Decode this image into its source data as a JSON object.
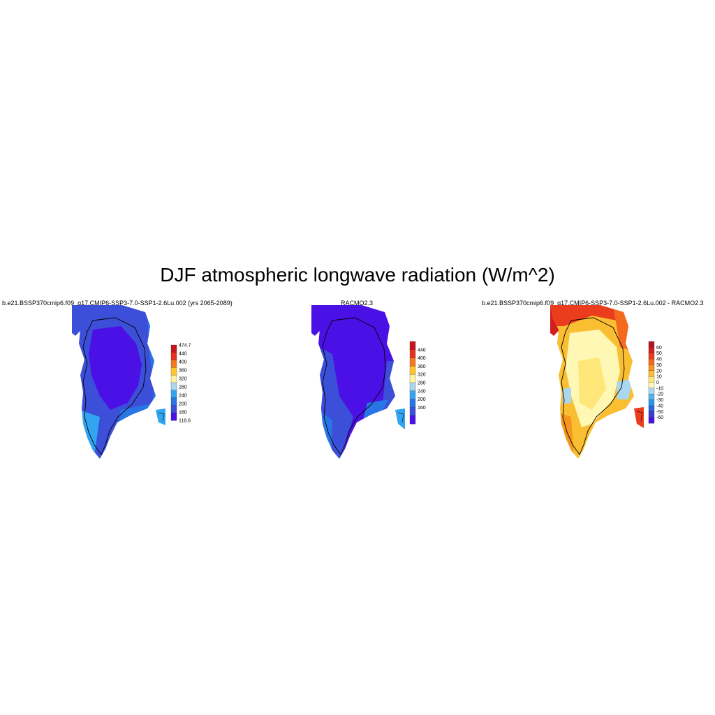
{
  "figure": {
    "title": "DJF atmospheric longwave radiation (W/m^2)"
  },
  "panels": [
    {
      "title": "b.e21.BSSP370cmip6.f09_g17.CMIP6-SSP3-7.0-SSP1-2.6Lu.002 (yrs 2065-2089)",
      "colorbar": {
        "labels": [
          "474.7",
          "440",
          "400",
          "360",
          "320",
          "280",
          "240",
          "200",
          "160",
          "118.6"
        ],
        "colors": [
          "#c8141e",
          "#e8321e",
          "#f57a1e",
          "#ffc52a",
          "#fff3a0",
          "#aad7f0",
          "#32a5f0",
          "#2876e6",
          "#3c4fd8",
          "#4b10e6"
        ]
      }
    },
    {
      "title": "RACMO2.3",
      "colorbar": {
        "labels": [
          "440",
          "400",
          "360",
          "320",
          "280",
          "240",
          "200",
          "160"
        ],
        "colors": [
          "#c8141e",
          "#e8321e",
          "#f57a1e",
          "#ffc52a",
          "#fff3a0",
          "#aad7f0",
          "#32a5f0",
          "#2876e6",
          "#3c4fd8",
          "#4b10e6"
        ]
      }
    },
    {
      "title": "b.e21.BSSP370cmip6.f09_g17.CMIP6-SSP3-7.0-SSP1-2.6Lu.002 - RACMO2.3",
      "colorbar": {
        "labels": [
          "60",
          "50",
          "40",
          "30",
          "20",
          "10",
          "0",
          "-10",
          "-20",
          "-30",
          "-40",
          "-50",
          "-60"
        ],
        "colors": [
          "#b4141e",
          "#d21e1e",
          "#eb3c1e",
          "#f5691e",
          "#f5961e",
          "#fabe32",
          "#ffe678",
          "#fff8b4",
          "#aad7f0",
          "#50b4f0",
          "#2896e6",
          "#2864dc",
          "#3c3cd2",
          "#4b10e6"
        ]
      }
    }
  ]
}
